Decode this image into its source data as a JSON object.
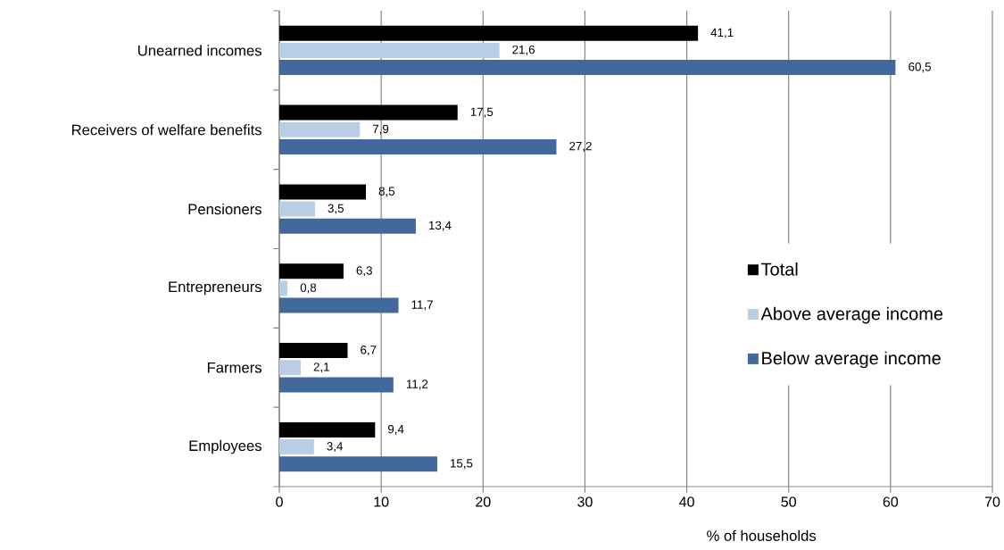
{
  "chart_data": {
    "type": "bar",
    "orientation": "horizontal",
    "categories": [
      "Unearned incomes",
      "Receivers of welfare benefits",
      "Pensioners",
      "Entrepreneurs",
      "Farmers",
      "Employees"
    ],
    "series": [
      {
        "name": "Total",
        "color": "#000000",
        "values": [
          41.1,
          17.5,
          8.5,
          6.3,
          6.7,
          9.4
        ],
        "value_labels": [
          "41,1",
          "17,5",
          "8,5",
          "6,3",
          "6,7",
          "9,4"
        ]
      },
      {
        "name": "Above average income",
        "color": "#b9cde5",
        "values": [
          21.6,
          7.9,
          3.5,
          0.8,
          2.1,
          3.4
        ],
        "value_labels": [
          "21,6",
          "7,9",
          "3,5",
          "0,8",
          "2,1",
          "3,4"
        ]
      },
      {
        "name": "Below average income",
        "color": "#41699c",
        "values": [
          60.5,
          27.2,
          13.4,
          11.7,
          11.2,
          15.5
        ],
        "value_labels": [
          "60,5",
          "27,2",
          "13,4",
          "11,7",
          "11,2",
          "15,5"
        ]
      }
    ],
    "xlabel": "% of households",
    "xlim": [
      0,
      70
    ],
    "xticks": [
      0,
      10,
      20,
      30,
      40,
      50,
      60,
      70
    ],
    "grid": "x",
    "legend": "right"
  }
}
